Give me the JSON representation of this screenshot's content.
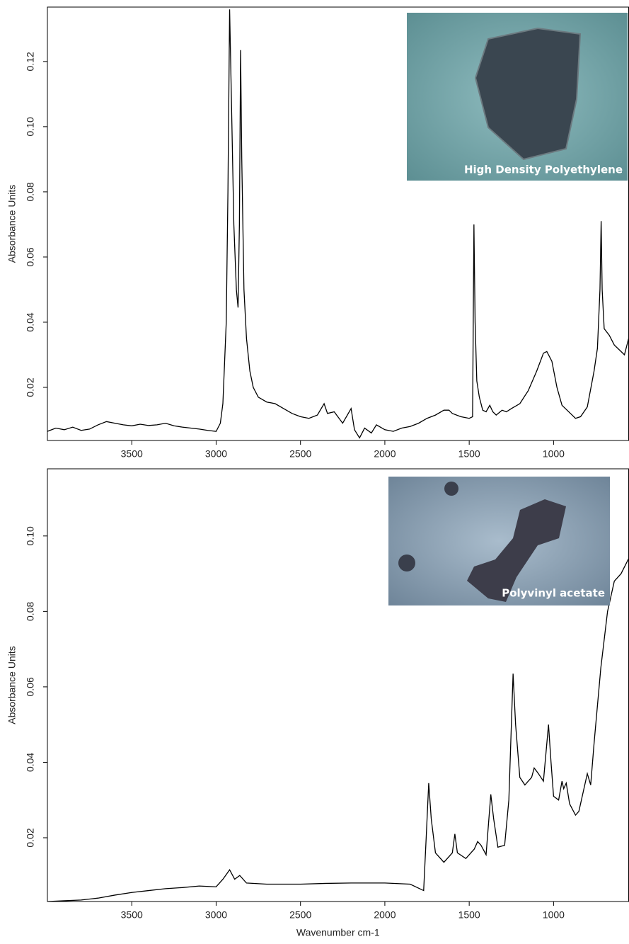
{
  "chart_data": [
    {
      "type": "line",
      "ylabel": "Absorbance Units",
      "annotation": "High Density Polyethylene",
      "color": "#000000",
      "xlim": [
        4000,
        555
      ],
      "xticks": [
        3500,
        3000,
        2500,
        2000,
        1500,
        1000
      ],
      "ylim": [
        0.0037,
        0.1367
      ],
      "yticks": [
        0.02,
        0.04,
        0.06,
        0.08,
        {
          "value": 0.1,
          "label": "0.10"
        },
        0.12
      ],
      "x": [
        4000,
        3950,
        3900,
        3850,
        3800,
        3750,
        3700,
        3650,
        3600,
        3550,
        3500,
        3450,
        3400,
        3350,
        3300,
        3250,
        3200,
        3150,
        3100,
        3050,
        3000,
        2975,
        2960,
        2940,
        2930,
        2920,
        2910,
        2895,
        2880,
        2870,
        2862,
        2855,
        2848,
        2835,
        2820,
        2800,
        2780,
        2750,
        2700,
        2650,
        2600,
        2550,
        2500,
        2450,
        2400,
        2360,
        2340,
        2300,
        2250,
        2200,
        2180,
        2150,
        2120,
        2080,
        2050,
        2000,
        1950,
        1900,
        1850,
        1800,
        1750,
        1700,
        1650,
        1620,
        1600,
        1550,
        1500,
        1480,
        1472,
        1465,
        1455,
        1440,
        1420,
        1400,
        1378,
        1360,
        1340,
        1305,
        1280,
        1250,
        1200,
        1150,
        1100,
        1060,
        1040,
        1010,
        980,
        950,
        900,
        870,
        840,
        800,
        760,
        740,
        725,
        718,
        712,
        700,
        670,
        640,
        600,
        580,
        555
      ],
      "values": [
        0.0065,
        0.0075,
        0.007,
        0.0078,
        0.0068,
        0.0072,
        0.0085,
        0.0095,
        0.009,
        0.0085,
        0.0082,
        0.0087,
        0.0083,
        0.0085,
        0.009,
        0.0082,
        0.0078,
        0.0075,
        0.0072,
        0.0068,
        0.0065,
        0.009,
        0.015,
        0.04,
        0.08,
        0.136,
        0.11,
        0.07,
        0.05,
        0.0445,
        0.07,
        0.1235,
        0.09,
        0.05,
        0.035,
        0.025,
        0.02,
        0.017,
        0.0155,
        0.015,
        0.0135,
        0.012,
        0.011,
        0.0105,
        0.0115,
        0.015,
        0.012,
        0.0125,
        0.009,
        0.0135,
        0.007,
        0.0045,
        0.0075,
        0.006,
        0.0085,
        0.007,
        0.0065,
        0.0075,
        0.008,
        0.009,
        0.0105,
        0.0115,
        0.013,
        0.013,
        0.012,
        0.011,
        0.0105,
        0.011,
        0.07,
        0.04,
        0.022,
        0.017,
        0.013,
        0.0125,
        0.0145,
        0.0125,
        0.0115,
        0.013,
        0.0125,
        0.0135,
        0.015,
        0.019,
        0.025,
        0.0305,
        0.031,
        0.028,
        0.02,
        0.0145,
        0.012,
        0.0105,
        0.011,
        0.014,
        0.025,
        0.032,
        0.05,
        0.071,
        0.05,
        0.038,
        0.036,
        0.033,
        0.031,
        0.03,
        0.035
      ]
    },
    {
      "type": "line",
      "ylabel": "Absorbance Units",
      "xlabel": "Wavenumber cm-1",
      "annotation": "Polyvinyl acetate",
      "color": "#000000",
      "xlim": [
        4000,
        555
      ],
      "xticks": [
        3500,
        3000,
        2500,
        2000,
        1500,
        1000
      ],
      "ylim": [
        0.0031,
        0.1178
      ],
      "yticks": [
        0.02,
        0.04,
        0.06,
        0.08,
        {
          "value": 0.1,
          "label": "0.10"
        }
      ],
      "x": [
        4000,
        3900,
        3800,
        3700,
        3600,
        3500,
        3400,
        3300,
        3200,
        3100,
        3000,
        2960,
        2920,
        2890,
        2860,
        2820,
        2700,
        2500,
        2350,
        2200,
        2000,
        1850,
        1770,
        1755,
        1740,
        1725,
        1700,
        1650,
        1600,
        1585,
        1570,
        1520,
        1470,
        1450,
        1430,
        1400,
        1372,
        1355,
        1330,
        1290,
        1265,
        1240,
        1225,
        1200,
        1170,
        1130,
        1115,
        1090,
        1060,
        1030,
        1015,
        1000,
        970,
        950,
        940,
        925,
        905,
        870,
        850,
        800,
        780,
        760,
        720,
        680,
        640,
        600,
        555
      ],
      "values": [
        0.0031,
        0.0033,
        0.0035,
        0.004,
        0.0048,
        0.0055,
        0.006,
        0.0065,
        0.0068,
        0.0072,
        0.007,
        0.009,
        0.0115,
        0.009,
        0.01,
        0.008,
        0.0077,
        0.0077,
        0.0079,
        0.008,
        0.008,
        0.0077,
        0.006,
        0.02,
        0.0345,
        0.025,
        0.016,
        0.0135,
        0.016,
        0.021,
        0.016,
        0.0145,
        0.017,
        0.019,
        0.018,
        0.0155,
        0.0315,
        0.025,
        0.0175,
        0.018,
        0.03,
        0.0635,
        0.05,
        0.036,
        0.034,
        0.036,
        0.0385,
        0.037,
        0.035,
        0.05,
        0.04,
        0.031,
        0.03,
        0.035,
        0.033,
        0.0345,
        0.029,
        0.026,
        0.027,
        0.037,
        0.034,
        0.045,
        0.065,
        0.08,
        0.088,
        0.09,
        0.094
      ]
    }
  ]
}
